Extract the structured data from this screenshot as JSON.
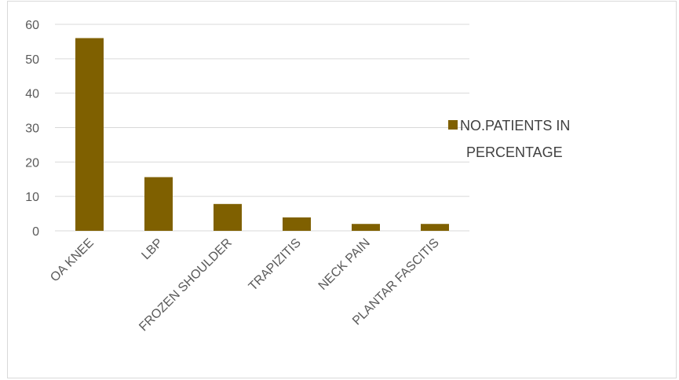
{
  "chart_data": {
    "type": "bar",
    "categories": [
      "OA KNEE",
      "LBP",
      "FROZEN SHOULDER",
      "TRAPIZITIS",
      "NECK PAIN",
      "PLANTAR FASCITIS"
    ],
    "series": [
      {
        "name": "NO.PATIENTS IN PERCENTAGE",
        "values": [
          56,
          15.6,
          7.8,
          3.9,
          2,
          2
        ]
      }
    ],
    "ylim": [
      0,
      60
    ],
    "yticks": [
      0,
      10,
      20,
      30,
      40,
      50,
      60
    ],
    "grid": true,
    "legend_position": "right",
    "legend_lines": [
      "NO.PATIENTS IN",
      "PERCENTAGE"
    ],
    "bar_color": "#7f6000",
    "grid_color": "#d9d9d9"
  }
}
